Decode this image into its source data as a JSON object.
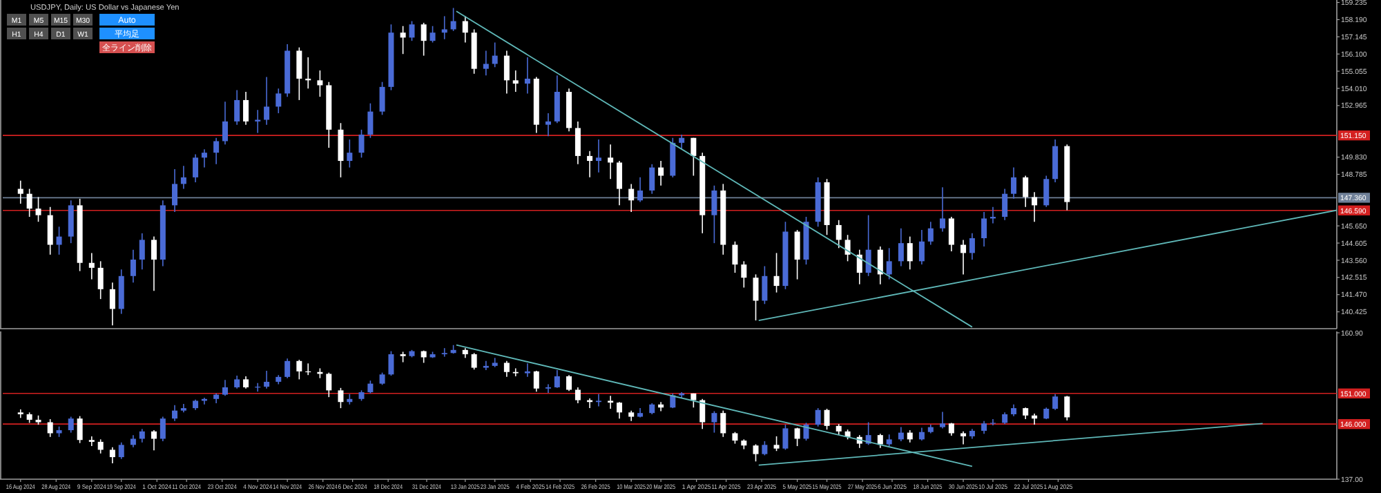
{
  "chart_data": [
    {
      "type": "candlestick",
      "title": "USDJPY, Daily: US Dollar vs Japanese Yen",
      "annotations": [
        "M1",
        "M5",
        "M15",
        "M30",
        "H1",
        "H4",
        "D1",
        "W1",
        "Auto",
        "平均足",
        "全ライン削除"
      ],
      "colors": [
        "#ffffff",
        "#ffffff",
        "#ffffff",
        "#ffffff",
        "#4a6bd6",
        "#4a6bd6",
        "#ffffff",
        "#ffffff",
        "#ffffff",
        "#ffffff",
        "#4a6bd6",
        "#4a6bd6",
        "#4a6bd6",
        "#ffffff",
        "#4a6bd6",
        "#4a6bd6",
        "#4a6bd6",
        "#4a6bd6",
        "#4a6bd6",
        "#4a6bd6",
        "#4a6bd6",
        "#4a6bd6",
        "#ffffff",
        "#4a6bd6",
        "#4a6bd6",
        "#4a6bd6",
        "#4a6bd6",
        "#ffffff",
        "#ffffff",
        "#ffffff",
        "#ffffff",
        "#ffffff",
        "#4a6bd6",
        "#4a6bd6",
        "#4a6bd6",
        "#4a6bd6",
        "#4a6bd6",
        "#ffffff",
        "#4a6bd6",
        "#ffffff",
        "#4a6bd6",
        "#4a6bd6",
        "#4a6bd6",
        "#ffffff",
        "#ffffff",
        "#4a6bd6",
        "#4a6bd6",
        "#ffffff",
        "#ffffff",
        "#4a6bd6",
        "#ffffff",
        "#4a6bd6",
        "#4a6bd6",
        "#ffffff",
        "#ffffff",
        "#ffffff",
        "#4a6bd6",
        "#ffffff",
        "#ffffff",
        "#ffffff",
        "#4a6bd6",
        "#4a6bd6",
        "#ffffff",
        "#4a6bd6",
        "#4a6bd6",
        "#ffffff",
        "#ffffff",
        "#4a6bd6",
        "#ffffff",
        "#ffffff",
        "#ffffff",
        "#ffffff",
        "#4a6bd6",
        "#ffffff",
        "#4a6bd6",
        "#ffffff",
        "#4a6bd6",
        "#4a6bd6",
        "#ffffff",
        "#ffffff",
        "#ffffff",
        "#ffffff",
        "#4a6bd6",
        "#ffffff",
        "#4a6bd6",
        "#4a6bd6",
        "#ffffff",
        "#4a6bd6",
        "#4a6bd6",
        "#4a6bd6",
        "#ffffff",
        "#ffffff",
        "#4a6bd6",
        "#4a6bd6",
        "#4a6bd6",
        "#4a6bd6",
        "#4a6bd6",
        "#ffffff",
        "#ffffff",
        "#4a6bd6",
        "#4a6bd6",
        "#ffffff"
      ],
      "x": [
        "2024-08-16",
        "2024-08-19",
        "2024-08-22",
        "2024-08-26",
        "2024-08-29",
        "2024-09-02",
        "2024-09-05",
        "2024-09-09",
        "2024-09-12",
        "2024-09-16",
        "2024-09-19",
        "2024-09-23",
        "2024-09-26",
        "2024-09-30",
        "2024-10-03",
        "2024-10-07",
        "2024-10-10",
        "2024-10-14",
        "2024-10-17",
        "2024-10-21",
        "2024-10-24",
        "2024-10-28",
        "2024-10-31",
        "2024-11-04",
        "2024-11-07",
        "2024-11-11",
        "2024-11-14",
        "2024-11-18",
        "2024-11-21",
        "2024-11-25",
        "2024-11-28",
        "2024-12-02",
        "2024-12-05",
        "2024-12-09",
        "2024-12-12",
        "2024-12-16",
        "2024-12-19",
        "2024-12-23",
        "2024-12-26",
        "2024-12-30",
        "2025-01-02",
        "2025-01-06",
        "2025-01-09",
        "2025-01-13",
        "2025-01-16",
        "2025-01-20",
        "2025-01-23",
        "2025-01-27",
        "2025-01-30",
        "2025-02-03",
        "2025-02-06",
        "2025-02-10",
        "2025-02-13",
        "2025-02-17",
        "2025-02-20",
        "2025-02-24",
        "2025-02-27",
        "2025-03-03",
        "2025-03-06",
        "2025-03-10",
        "2025-03-13",
        "2025-03-17",
        "2025-03-20",
        "2025-03-24",
        "2025-03-27",
        "2025-03-31",
        "2025-04-03",
        "2025-04-07",
        "2025-04-10",
        "2025-04-14",
        "2025-04-17",
        "2025-04-21",
        "2025-04-24",
        "2025-04-28",
        "2025-05-01",
        "2025-05-05",
        "2025-05-08",
        "2025-05-12",
        "2025-05-15",
        "2025-05-19",
        "2025-05-22",
        "2025-05-26",
        "2025-05-29",
        "2025-06-02",
        "2025-06-05",
        "2025-06-09",
        "2025-06-12",
        "2025-06-16",
        "2025-06-19",
        "2025-06-23",
        "2025-06-26",
        "2025-06-30",
        "2025-07-03",
        "2025-07-07",
        "2025-07-10",
        "2025-07-14",
        "2025-07-17",
        "2025-07-21",
        "2025-07-24",
        "2025-07-28",
        "2025-07-31",
        "2025-08-04"
      ],
      "ohlc": [
        [
          147.9,
          148.4,
          147.0,
          147.6
        ],
        [
          147.6,
          147.9,
          146.2,
          146.7
        ],
        [
          146.7,
          147.4,
          145.9,
          146.3
        ],
        [
          146.3,
          146.8,
          143.9,
          144.5
        ],
        [
          144.5,
          145.6,
          143.9,
          145.0
        ],
        [
          145.0,
          147.2,
          144.6,
          146.9
        ],
        [
          146.9,
          147.3,
          142.9,
          143.4
        ],
        [
          143.4,
          144.0,
          142.4,
          143.1
        ],
        [
          143.1,
          143.5,
          141.2,
          141.8
        ],
        [
          141.8,
          142.2,
          139.6,
          140.6
        ],
        [
          140.6,
          143.0,
          140.3,
          142.6
        ],
        [
          142.6,
          144.2,
          142.2,
          143.6
        ],
        [
          143.6,
          145.2,
          143.0,
          144.8
        ],
        [
          144.8,
          145.0,
          141.7,
          143.6
        ],
        [
          143.6,
          147.2,
          143.2,
          146.9
        ],
        [
          146.9,
          149.1,
          146.5,
          148.2
        ],
        [
          148.2,
          149.3,
          147.9,
          148.6
        ],
        [
          148.6,
          150.0,
          148.3,
          149.8
        ],
        [
          149.8,
          150.3,
          149.2,
          150.1
        ],
        [
          150.1,
          151.0,
          149.4,
          150.8
        ],
        [
          150.8,
          153.2,
          150.6,
          152.0
        ],
        [
          152.0,
          153.9,
          151.8,
          153.3
        ],
        [
          153.3,
          153.8,
          151.8,
          152.0
        ],
        [
          152.0,
          152.7,
          151.3,
          152.1
        ],
        [
          152.1,
          154.7,
          151.8,
          152.9
        ],
        [
          152.9,
          154.0,
          152.5,
          153.7
        ],
        [
          153.7,
          156.7,
          153.5,
          156.3
        ],
        [
          156.3,
          156.5,
          153.3,
          154.6
        ],
        [
          154.6,
          155.9,
          154.0,
          154.5
        ],
        [
          154.5,
          155.1,
          153.5,
          154.2
        ],
        [
          154.2,
          154.4,
          150.4,
          151.5
        ],
        [
          151.5,
          151.9,
          148.6,
          149.6
        ],
        [
          149.6,
          150.9,
          149.2,
          150.1
        ],
        [
          150.1,
          151.5,
          149.8,
          151.2
        ],
        [
          151.2,
          153.1,
          151.0,
          152.6
        ],
        [
          152.6,
          154.4,
          152.4,
          154.1
        ],
        [
          154.1,
          157.9,
          153.9,
          157.4
        ],
        [
          157.4,
          157.8,
          156.1,
          157.1
        ],
        [
          157.1,
          158.1,
          156.9,
          157.9
        ],
        [
          157.9,
          158.0,
          156.0,
          156.9
        ],
        [
          156.9,
          157.8,
          156.8,
          157.4
        ],
        [
          157.4,
          158.4,
          157.0,
          157.6
        ],
        [
          157.6,
          158.9,
          157.5,
          158.1
        ],
        [
          158.1,
          158.4,
          156.8,
          157.4
        ],
        [
          157.4,
          157.6,
          154.9,
          155.2
        ],
        [
          155.2,
          156.3,
          154.8,
          155.5
        ],
        [
          155.5,
          156.8,
          155.3,
          156.0
        ],
        [
          156.0,
          156.3,
          153.7,
          154.5
        ],
        [
          154.5,
          155.1,
          153.8,
          154.3
        ],
        [
          154.3,
          155.9,
          153.7,
          154.6
        ],
        [
          154.6,
          154.7,
          151.3,
          151.8
        ],
        [
          151.8,
          152.5,
          151.1,
          152.0
        ],
        [
          152.0,
          154.8,
          151.9,
          153.8
        ],
        [
          153.8,
          154.0,
          151.4,
          151.6
        ],
        [
          151.6,
          152.0,
          149.4,
          149.9
        ],
        [
          149.9,
          150.2,
          148.6,
          149.6
        ],
        [
          149.6,
          150.9,
          148.9,
          149.8
        ],
        [
          149.8,
          150.6,
          148.5,
          149.5
        ],
        [
          149.5,
          149.6,
          146.9,
          147.9
        ],
        [
          147.9,
          148.2,
          146.5,
          147.2
        ],
        [
          147.2,
          148.6,
          147.1,
          147.8
        ],
        [
          147.8,
          149.4,
          147.6,
          149.2
        ],
        [
          149.2,
          149.6,
          148.1,
          148.7
        ],
        [
          148.7,
          151.0,
          148.6,
          150.7
        ],
        [
          150.7,
          151.2,
          150.3,
          151.0
        ],
        [
          151.0,
          151.0,
          148.7,
          149.9
        ],
        [
          149.9,
          150.1,
          145.2,
          146.3
        ],
        [
          146.3,
          148.1,
          144.6,
          147.8
        ],
        [
          147.8,
          148.2,
          143.9,
          144.5
        ],
        [
          144.5,
          144.7,
          142.8,
          143.3
        ],
        [
          143.3,
          143.5,
          141.9,
          142.5
        ],
        [
          142.5,
          142.7,
          139.9,
          141.1
        ],
        [
          141.1,
          143.2,
          140.9,
          142.6
        ],
        [
          142.6,
          144.0,
          141.6,
          142.0
        ],
        [
          142.0,
          145.9,
          141.8,
          145.3
        ],
        [
          145.3,
          145.4,
          142.4,
          143.6
        ],
        [
          143.6,
          146.2,
          143.3,
          145.9
        ],
        [
          145.9,
          148.6,
          145.6,
          148.3
        ],
        [
          148.3,
          148.5,
          145.1,
          145.7
        ],
        [
          145.7,
          146.0,
          144.3,
          144.8
        ],
        [
          144.8,
          145.1,
          143.5,
          143.9
        ],
        [
          143.9,
          144.2,
          142.1,
          142.8
        ],
        [
          142.8,
          146.3,
          142.6,
          144.2
        ],
        [
          144.2,
          144.4,
          142.1,
          142.7
        ],
        [
          142.7,
          144.3,
          142.4,
          143.5
        ],
        [
          143.5,
          145.5,
          143.2,
          144.6
        ],
        [
          144.6,
          145.0,
          143.0,
          143.5
        ],
        [
          143.5,
          145.4,
          143.3,
          144.7
        ],
        [
          144.7,
          145.9,
          144.5,
          145.5
        ],
        [
          145.5,
          148.0,
          145.3,
          146.1
        ],
        [
          146.1,
          146.2,
          144.1,
          144.5
        ],
        [
          144.5,
          144.8,
          142.7,
          144.0
        ],
        [
          144.0,
          145.2,
          143.6,
          144.9
        ],
        [
          144.9,
          146.5,
          144.4,
          146.1
        ],
        [
          146.1,
          146.8,
          145.8,
          146.2
        ],
        [
          146.2,
          147.9,
          146.0,
          147.6
        ],
        [
          147.6,
          149.2,
          147.3,
          148.6
        ],
        [
          148.6,
          148.7,
          146.8,
          147.4
        ],
        [
          147.4,
          147.7,
          145.9,
          146.9
        ],
        [
          146.9,
          148.7,
          146.8,
          148.5
        ],
        [
          148.5,
          150.9,
          148.3,
          150.5
        ],
        [
          150.5,
          150.6,
          146.6,
          147.1
        ]
      ],
      "series": [
        {
          "type": "line",
          "color": "#5fb8b8",
          "x": [
            "2025-01-10",
            "2025-07-03"
          ],
          "values": [
            158.7,
            139.5
          ]
        },
        {
          "type": "line",
          "color": "#5fb8b8",
          "x": [
            "2025-04-22",
            "2025-11-03"
          ],
          "values": [
            139.9,
            146.6
          ]
        }
      ],
      "ref_lines": [
        {
          "axis": "y",
          "value": 151.15,
          "label": "151.150",
          "color": "#d42020"
        },
        {
          "axis": "y",
          "value": 146.59,
          "label": "146.590",
          "color": "#d42020"
        },
        {
          "axis": "y",
          "value": 147.36,
          "label": "147.360",
          "color": "#6f8098"
        }
      ],
      "xlim": [
        "2024-08-10",
        "2025-11-03"
      ],
      "ylim": [
        139.4,
        159.3
      ],
      "yticks": [
        {
          "value": 140.425,
          "label": "140.425"
        },
        {
          "value": 141.47,
          "label": "141.470"
        },
        {
          "value": 142.515,
          "label": "142.515"
        },
        {
          "value": 143.56,
          "label": "143.560"
        },
        {
          "value": 144.605,
          "label": "144.605"
        },
        {
          "value": 145.65,
          "label": "145.650"
        },
        {
          "value": 148.785,
          "label": "148.785"
        },
        {
          "value": 149.83,
          "label": "149.830"
        },
        {
          "value": 152.965,
          "label": "152.965"
        },
        {
          "value": 154.01,
          "label": "154.010"
        },
        {
          "value": 155.055,
          "label": "155.055"
        },
        {
          "value": 156.1,
          "label": "156.100"
        },
        {
          "value": 157.145,
          "label": "157.145"
        },
        {
          "value": 158.19,
          "label": "158.190"
        },
        {
          "value": 159.235,
          "label": "159.235"
        }
      ],
      "tick_labels": "y"
    },
    {
      "type": "candlestick",
      "colors": [
        "#ffffff",
        "#ffffff",
        "#ffffff",
        "#ffffff",
        "#4a6bd6",
        "#4a6bd6",
        "#ffffff",
        "#ffffff",
        "#ffffff",
        "#ffffff",
        "#4a6bd6",
        "#4a6bd6",
        "#4a6bd6",
        "#ffffff",
        "#4a6bd6",
        "#4a6bd6",
        "#4a6bd6",
        "#4a6bd6",
        "#4a6bd6",
        "#4a6bd6",
        "#4a6bd6",
        "#4a6bd6",
        "#ffffff",
        "#4a6bd6",
        "#4a6bd6",
        "#4a6bd6",
        "#4a6bd6",
        "#ffffff",
        "#ffffff",
        "#ffffff",
        "#ffffff",
        "#ffffff",
        "#4a6bd6",
        "#4a6bd6",
        "#4a6bd6",
        "#4a6bd6",
        "#4a6bd6",
        "#ffffff",
        "#4a6bd6",
        "#ffffff",
        "#4a6bd6",
        "#4a6bd6",
        "#4a6bd6",
        "#ffffff",
        "#ffffff",
        "#4a6bd6",
        "#4a6bd6",
        "#ffffff",
        "#ffffff",
        "#4a6bd6",
        "#ffffff",
        "#4a6bd6",
        "#4a6bd6",
        "#ffffff",
        "#ffffff",
        "#ffffff",
        "#4a6bd6",
        "#ffffff",
        "#ffffff",
        "#ffffff",
        "#4a6bd6",
        "#4a6bd6",
        "#ffffff",
        "#4a6bd6",
        "#4a6bd6",
        "#ffffff",
        "#ffffff",
        "#4a6bd6",
        "#ffffff",
        "#ffffff",
        "#ffffff",
        "#ffffff",
        "#4a6bd6",
        "#ffffff",
        "#4a6bd6",
        "#ffffff",
        "#4a6bd6",
        "#4a6bd6",
        "#ffffff",
        "#ffffff",
        "#ffffff",
        "#ffffff",
        "#4a6bd6",
        "#ffffff",
        "#4a6bd6",
        "#4a6bd6",
        "#ffffff",
        "#4a6bd6",
        "#4a6bd6",
        "#4a6bd6",
        "#ffffff",
        "#ffffff",
        "#4a6bd6",
        "#4a6bd6",
        "#4a6bd6",
        "#4a6bd6",
        "#4a6bd6",
        "#ffffff",
        "#ffffff",
        "#4a6bd6",
        "#4a6bd6",
        "#ffffff"
      ],
      "x": [
        "2024-08-16",
        "2024-08-19",
        "2024-08-22",
        "2024-08-26",
        "2024-08-29",
        "2024-09-02",
        "2024-09-05",
        "2024-09-09",
        "2024-09-12",
        "2024-09-16",
        "2024-09-19",
        "2024-09-23",
        "2024-09-26",
        "2024-09-30",
        "2024-10-03",
        "2024-10-07",
        "2024-10-10",
        "2024-10-14",
        "2024-10-17",
        "2024-10-21",
        "2024-10-24",
        "2024-10-28",
        "2024-10-31",
        "2024-11-04",
        "2024-11-07",
        "2024-11-11",
        "2024-11-14",
        "2024-11-18",
        "2024-11-21",
        "2024-11-25",
        "2024-11-28",
        "2024-12-02",
        "2024-12-05",
        "2024-12-09",
        "2024-12-12",
        "2024-12-16",
        "2024-12-19",
        "2024-12-23",
        "2024-12-26",
        "2024-12-30",
        "2025-01-02",
        "2025-01-06",
        "2025-01-09",
        "2025-01-13",
        "2025-01-16",
        "2025-01-20",
        "2025-01-23",
        "2025-01-27",
        "2025-01-30",
        "2025-02-03",
        "2025-02-06",
        "2025-02-10",
        "2025-02-13",
        "2025-02-17",
        "2025-02-20",
        "2025-02-24",
        "2025-02-27",
        "2025-03-03",
        "2025-03-06",
        "2025-03-10",
        "2025-03-13",
        "2025-03-17",
        "2025-03-20",
        "2025-03-24",
        "2025-03-27",
        "2025-03-31",
        "2025-04-03",
        "2025-04-07",
        "2025-04-10",
        "2025-04-14",
        "2025-04-17",
        "2025-04-21",
        "2025-04-24",
        "2025-04-28",
        "2025-05-01",
        "2025-05-05",
        "2025-05-08",
        "2025-05-12",
        "2025-05-15",
        "2025-05-19",
        "2025-05-22",
        "2025-05-26",
        "2025-05-29",
        "2025-06-02",
        "2025-06-05",
        "2025-06-09",
        "2025-06-12",
        "2025-06-16",
        "2025-06-19",
        "2025-06-23",
        "2025-06-26",
        "2025-06-30",
        "2025-07-03",
        "2025-07-07",
        "2025-07-10",
        "2025-07-14",
        "2025-07-17",
        "2025-07-21",
        "2025-07-24",
        "2025-07-28",
        "2025-07-31",
        "2025-08-04"
      ],
      "ohlc": [
        [
          147.9,
          148.4,
          147.0,
          147.6
        ],
        [
          147.6,
          147.9,
          146.2,
          146.7
        ],
        [
          146.7,
          147.4,
          145.9,
          146.3
        ],
        [
          146.3,
          146.8,
          143.9,
          144.5
        ],
        [
          144.5,
          145.6,
          143.9,
          145.0
        ],
        [
          145.0,
          147.2,
          144.6,
          146.9
        ],
        [
          146.9,
          147.3,
          142.9,
          143.4
        ],
        [
          143.4,
          144.0,
          142.4,
          143.1
        ],
        [
          143.1,
          143.5,
          141.2,
          141.8
        ],
        [
          141.8,
          142.2,
          139.6,
          140.6
        ],
        [
          140.6,
          143.0,
          140.3,
          142.6
        ],
        [
          142.6,
          144.2,
          142.2,
          143.6
        ],
        [
          143.6,
          145.2,
          143.0,
          144.8
        ],
        [
          144.8,
          145.0,
          141.7,
          143.6
        ],
        [
          143.6,
          147.2,
          143.2,
          146.9
        ],
        [
          146.9,
          149.1,
          146.5,
          148.2
        ],
        [
          148.2,
          149.3,
          147.9,
          148.6
        ],
        [
          148.6,
          150.0,
          148.3,
          149.8
        ],
        [
          149.8,
          150.3,
          149.2,
          150.1
        ],
        [
          150.1,
          151.0,
          149.4,
          150.8
        ],
        [
          150.8,
          153.2,
          150.6,
          152.0
        ],
        [
          152.0,
          153.9,
          151.8,
          153.3
        ],
        [
          153.3,
          153.8,
          151.8,
          152.0
        ],
        [
          152.0,
          152.7,
          151.3,
          152.1
        ],
        [
          152.1,
          154.7,
          151.8,
          152.9
        ],
        [
          152.9,
          154.0,
          152.5,
          153.7
        ],
        [
          153.7,
          156.7,
          153.5,
          156.3
        ],
        [
          156.3,
          156.5,
          153.3,
          154.6
        ],
        [
          154.6,
          155.9,
          154.0,
          154.5
        ],
        [
          154.5,
          155.1,
          153.5,
          154.2
        ],
        [
          154.2,
          154.4,
          150.4,
          151.5
        ],
        [
          151.5,
          151.9,
          148.6,
          149.6
        ],
        [
          149.6,
          150.9,
          149.2,
          150.1
        ],
        [
          150.1,
          151.5,
          149.8,
          151.2
        ],
        [
          151.2,
          153.1,
          151.0,
          152.6
        ],
        [
          152.6,
          154.4,
          152.4,
          154.1
        ],
        [
          154.1,
          157.9,
          153.9,
          157.4
        ],
        [
          157.4,
          157.8,
          156.1,
          157.1
        ],
        [
          157.1,
          158.1,
          156.9,
          157.9
        ],
        [
          157.9,
          158.0,
          156.0,
          156.9
        ],
        [
          156.9,
          157.8,
          156.8,
          157.4
        ],
        [
          157.4,
          158.4,
          157.0,
          157.6
        ],
        [
          157.6,
          158.9,
          157.5,
          158.1
        ],
        [
          158.1,
          158.4,
          156.8,
          157.4
        ],
        [
          157.4,
          157.6,
          154.9,
          155.2
        ],
        [
          155.2,
          156.3,
          154.8,
          155.5
        ],
        [
          155.5,
          156.8,
          155.3,
          156.0
        ],
        [
          156.0,
          156.3,
          153.7,
          154.5
        ],
        [
          154.5,
          155.1,
          153.8,
          154.3
        ],
        [
          154.3,
          155.9,
          153.7,
          154.6
        ],
        [
          154.6,
          154.7,
          151.3,
          151.8
        ],
        [
          151.8,
          152.5,
          151.1,
          152.0
        ],
        [
          152.0,
          154.8,
          151.9,
          153.8
        ],
        [
          153.8,
          154.0,
          151.4,
          151.6
        ],
        [
          151.6,
          152.0,
          149.4,
          149.9
        ],
        [
          149.9,
          150.2,
          148.6,
          149.6
        ],
        [
          149.6,
          150.9,
          148.9,
          149.8
        ],
        [
          149.8,
          150.6,
          148.5,
          149.5
        ],
        [
          149.5,
          149.6,
          146.9,
          147.9
        ],
        [
          147.9,
          148.2,
          146.5,
          147.2
        ],
        [
          147.2,
          148.6,
          147.1,
          147.8
        ],
        [
          147.8,
          149.4,
          147.6,
          149.2
        ],
        [
          149.2,
          149.6,
          148.1,
          148.7
        ],
        [
          148.7,
          151.0,
          148.6,
          150.7
        ],
        [
          150.7,
          151.2,
          150.3,
          151.0
        ],
        [
          151.0,
          151.0,
          148.7,
          149.9
        ],
        [
          149.9,
          150.1,
          145.2,
          146.3
        ],
        [
          146.3,
          148.1,
          144.6,
          147.8
        ],
        [
          147.8,
          148.2,
          143.9,
          144.5
        ],
        [
          144.5,
          144.7,
          142.8,
          143.3
        ],
        [
          143.3,
          143.5,
          141.9,
          142.5
        ],
        [
          142.5,
          142.7,
          139.9,
          141.1
        ],
        [
          141.1,
          143.2,
          140.9,
          142.6
        ],
        [
          142.6,
          144.0,
          141.6,
          142.0
        ],
        [
          142.0,
          145.9,
          141.8,
          145.3
        ],
        [
          145.3,
          145.4,
          142.4,
          143.6
        ],
        [
          143.6,
          146.2,
          143.3,
          145.9
        ],
        [
          145.9,
          148.6,
          145.6,
          148.3
        ],
        [
          148.3,
          148.5,
          145.1,
          145.7
        ],
        [
          145.7,
          146.0,
          144.3,
          144.8
        ],
        [
          144.8,
          145.1,
          143.5,
          143.9
        ],
        [
          143.9,
          144.2,
          142.1,
          142.8
        ],
        [
          142.8,
          146.3,
          142.6,
          144.2
        ],
        [
          144.2,
          144.4,
          142.1,
          142.7
        ],
        [
          142.7,
          144.3,
          142.4,
          143.5
        ],
        [
          143.5,
          145.5,
          143.2,
          144.6
        ],
        [
          144.6,
          145.0,
          143.0,
          143.5
        ],
        [
          143.5,
          145.4,
          143.3,
          144.7
        ],
        [
          144.7,
          145.9,
          144.5,
          145.5
        ],
        [
          145.5,
          148.0,
          145.3,
          146.1
        ],
        [
          146.1,
          146.2,
          144.1,
          144.5
        ],
        [
          144.5,
          144.8,
          142.7,
          144.0
        ],
        [
          144.0,
          145.2,
          143.6,
          144.9
        ],
        [
          144.9,
          146.5,
          144.4,
          146.1
        ],
        [
          146.1,
          146.8,
          145.8,
          146.2
        ],
        [
          146.2,
          147.9,
          146.0,
          147.6
        ],
        [
          147.6,
          149.2,
          147.3,
          148.6
        ],
        [
          148.6,
          148.7,
          146.8,
          147.4
        ],
        [
          147.4,
          147.7,
          145.9,
          146.9
        ],
        [
          146.9,
          148.7,
          146.8,
          148.5
        ],
        [
          148.5,
          150.9,
          148.3,
          150.5
        ],
        [
          150.5,
          150.6,
          146.6,
          147.1
        ]
      ],
      "series": [
        {
          "type": "line",
          "color": "#5fb8b8",
          "x": [
            "2025-01-10",
            "2025-07-03"
          ],
          "values": [
            158.9,
            139.1
          ]
        },
        {
          "type": "line",
          "color": "#5fb8b8",
          "x": [
            "2025-04-22",
            "2025-10-09"
          ],
          "values": [
            139.3,
            146.1
          ]
        }
      ],
      "ref_lines": [
        {
          "axis": "y",
          "value": 151.0,
          "label": "151.000",
          "color": "#d42020"
        },
        {
          "axis": "y",
          "value": 146.0,
          "label": "146.000",
          "color": "#d42020"
        }
      ],
      "xlim": [
        "2024-08-10",
        "2025-11-03"
      ],
      "ylim": [
        137.0,
        160.9
      ],
      "yticks": [
        {
          "value": 137.0,
          "label": "137.00"
        },
        {
          "value": 160.9,
          "label": "160.90"
        }
      ],
      "xticks": [
        {
          "value": "2024-08-16",
          "label": "16 Aug 2024"
        },
        {
          "value": "2024-08-28",
          "label": "28 Aug 2024"
        },
        {
          "value": "2024-09-09",
          "label": "9 Sep 2024"
        },
        {
          "value": "2024-09-19",
          "label": "19 Sep 2024"
        },
        {
          "value": "2024-10-01",
          "label": "1 Oct 2024"
        },
        {
          "value": "2024-10-11",
          "label": "11 Oct 2024"
        },
        {
          "value": "2024-10-23",
          "label": "23 Oct 2024"
        },
        {
          "value": "2024-11-04",
          "label": "4 Nov 2024"
        },
        {
          "value": "2024-11-14",
          "label": "14 Nov 2024"
        },
        {
          "value": "2024-11-26",
          "label": "26 Nov 2024"
        },
        {
          "value": "2024-12-06",
          "label": "6 Dec 2024"
        },
        {
          "value": "2024-12-18",
          "label": "18 Dec 2024"
        },
        {
          "value": "2024-12-31",
          "label": "31 Dec 2024"
        },
        {
          "value": "2025-01-13",
          "label": "13 Jan 2025"
        },
        {
          "value": "2025-01-23",
          "label": "23 Jan 2025"
        },
        {
          "value": "2025-02-04",
          "label": "4 Feb 2025"
        },
        {
          "value": "2025-02-14",
          "label": "14 Feb 2025"
        },
        {
          "value": "2025-02-26",
          "label": "26 Feb 2025"
        },
        {
          "value": "2025-03-10",
          "label": "10 Mar 2025"
        },
        {
          "value": "2025-03-20",
          "label": "20 Mar 2025"
        },
        {
          "value": "2025-04-01",
          "label": "1 Apr 2025"
        },
        {
          "value": "2025-04-11",
          "label": "11 Apr 2025"
        },
        {
          "value": "2025-04-23",
          "label": "23 Apr 2025"
        },
        {
          "value": "2025-05-05",
          "label": "5 May 2025"
        },
        {
          "value": "2025-05-15",
          "label": "15 May 2025"
        },
        {
          "value": "2025-05-27",
          "label": "27 May 2025"
        },
        {
          "value": "2025-06-06",
          "label": "6 Jun 2025"
        },
        {
          "value": "2025-06-18",
          "label": "18 Jun 2025"
        },
        {
          "value": "2025-06-30",
          "label": "30 Jun 2025"
        },
        {
          "value": "2025-07-10",
          "label": "10 Jul 2025"
        },
        {
          "value": "2025-07-22",
          "label": "22 Jul 2025"
        },
        {
          "value": "2025-08-01",
          "label": "1 Aug 2025"
        }
      ]
    }
  ]
}
